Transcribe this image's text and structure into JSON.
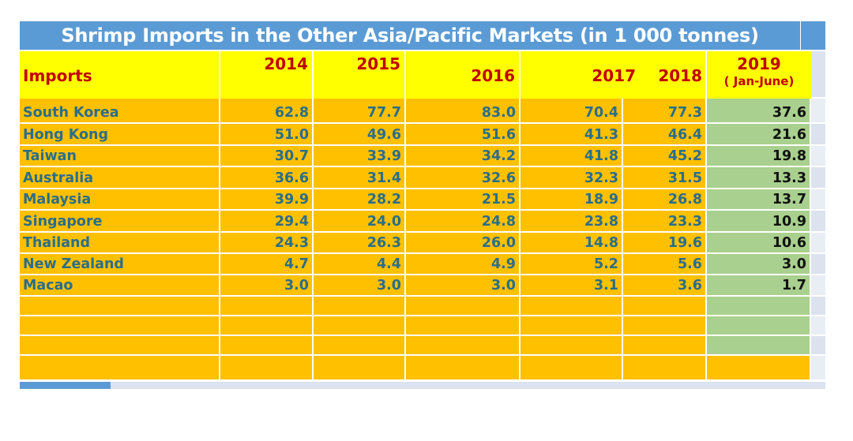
{
  "title": "Shrimp Imports in the Other Asia/Pacific Markets (in 1 000 tonnes)",
  "colors": {
    "title_bar": "#5B9BD5",
    "header": "#FFFF00",
    "body": "#FFC000",
    "highlight_2019": "#A9D08E",
    "header_text": "#C00000",
    "body_text": "#2A6E8A"
  },
  "chart_data": {
    "type": "table",
    "title": "Shrimp Imports in the Other Asia/Pacific Markets (in 1 000 tonnes)",
    "row_header": "Imports",
    "columns": [
      "2014",
      "2015",
      "2016",
      "2017",
      "2018",
      "2019"
    ],
    "column_note_2019": "( Jan-June)",
    "rows": [
      {
        "name": "South Korea",
        "values": [
          "62.8",
          "77.7",
          "83.0",
          "70.4",
          "77.3",
          "37.6"
        ]
      },
      {
        "name": "Hong Kong",
        "values": [
          "51.0",
          "49.6",
          "51.6",
          "41.3",
          "46.4",
          "21.6"
        ]
      },
      {
        "name": "Taiwan",
        "values": [
          "30.7",
          "33.9",
          "34.2",
          "41.8",
          "45.2",
          "19.8"
        ]
      },
      {
        "name": "Australia",
        "values": [
          "36.6",
          "31.4",
          "32.6",
          "32.3",
          "31.5",
          "13.3"
        ]
      },
      {
        "name": "Malaysia",
        "values": [
          "39.9",
          "28.2",
          "21.5",
          "18.9",
          "26.8",
          "13.7"
        ]
      },
      {
        "name": "Singapore",
        "values": [
          "29.4",
          "24.0",
          "24.8",
          "23.8",
          "23.3",
          "10.9"
        ]
      },
      {
        "name": "Thailand",
        "values": [
          "24.3",
          "26.3",
          "26.0",
          "14.8",
          "19.6",
          "10.6"
        ]
      },
      {
        "name": "New Zealand",
        "values": [
          "4.7",
          "4.4",
          "4.9",
          "5.2",
          "5.6",
          "3.0"
        ]
      },
      {
        "name": "Macao",
        "values": [
          "3.0",
          "3.0",
          "3.0",
          "3.1",
          "3.6",
          "1.7"
        ]
      }
    ]
  }
}
